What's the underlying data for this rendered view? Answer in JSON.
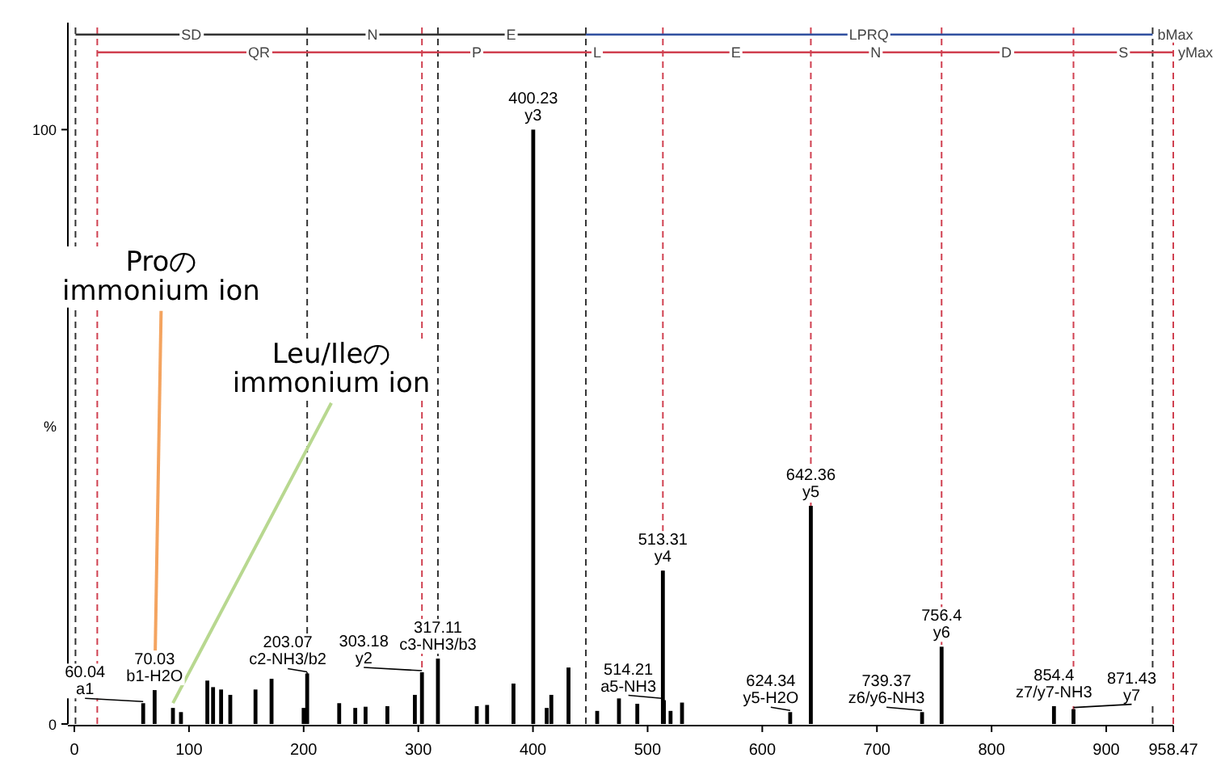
{
  "chart_data": {
    "type": "bar",
    "ylabel": "%",
    "xlim": [
      0,
      958.47
    ],
    "ylim": [
      0,
      118
    ],
    "xticks": [
      0,
      100,
      200,
      300,
      400,
      500,
      600,
      700,
      800,
      900,
      958.47
    ],
    "yticks": [
      0,
      100
    ],
    "x": [
      60.04,
      70.03,
      86,
      93,
      116,
      121,
      128,
      136,
      158,
      172,
      200,
      203.07,
      231,
      245,
      254,
      273,
      297,
      303.18,
      317.11,
      351,
      360,
      383,
      400.23,
      412,
      416,
      431,
      456,
      475,
      491,
      513.31,
      514.21,
      520,
      530,
      624.34,
      642.36,
      739.37,
      756.4,
      854.4,
      871.43
    ],
    "series": [
      {
        "color": "#000000",
        "values": [
          3.5,
          5.7,
          2.7,
          2.0,
          7.3,
          6.2,
          5.8,
          4.9,
          5.8,
          7.6,
          2.7,
          8.5,
          3.5,
          2.7,
          2.9,
          3.0,
          4.9,
          8.7,
          11,
          3,
          3.2,
          6.8,
          100,
          2.7,
          4.9,
          9.5,
          2.2,
          4.3,
          3.4,
          25.8,
          4,
          2.2,
          3.6,
          2,
          36.7,
          2,
          13,
          3,
          2.5
        ]
      },
      {
        "type": "line",
        "color": "#333333",
        "x": [
          1,
          203.07,
          317.11,
          446.15
        ],
        "values": [
          116,
          116,
          116,
          116
        ]
      },
      {
        "type": "line",
        "color": "#3050a0",
        "x": [
          446.15,
          940.46
        ],
        "values": [
          116,
          116
        ]
      },
      {
        "type": "line",
        "color": "#d04050",
        "x": [
          20,
          303.18,
          400.23,
          513.31,
          642.36,
          756.4,
          871.43,
          958.47
        ],
        "values": [
          113,
          113,
          113,
          113,
          113,
          113,
          113,
          113
        ]
      }
    ],
    "ref_lines": [
      {
        "axis": "x",
        "value": 1,
        "color": "#333333",
        "line_style": "dashed"
      },
      {
        "axis": "x",
        "value": 203.07,
        "color": "#333333",
        "line_style": "dashed"
      },
      {
        "axis": "x",
        "value": 317.11,
        "color": "#333333",
        "line_style": "dashed"
      },
      {
        "axis": "x",
        "value": 446.15,
        "color": "#333333",
        "line_style": "dashed"
      },
      {
        "axis": "x",
        "value": 940.46,
        "color": "#333333",
        "line_style": "dashed"
      },
      {
        "axis": "x",
        "value": 20,
        "color": "#d04050",
        "line_style": "dashed"
      },
      {
        "axis": "x",
        "value": 303.18,
        "color": "#d04050",
        "line_style": "dashed"
      },
      {
        "axis": "x",
        "value": 513.31,
        "color": "#d04050",
        "line_style": "dashed"
      },
      {
        "axis": "x",
        "value": 642.36,
        "color": "#d04050",
        "line_style": "dashed"
      },
      {
        "axis": "x",
        "value": 756.4,
        "color": "#d04050",
        "line_style": "dashed"
      },
      {
        "axis": "x",
        "value": 871.43,
        "color": "#d04050",
        "line_style": "dashed"
      },
      {
        "axis": "x",
        "value": 958.47,
        "color": "#d04050",
        "line_style": "dashed"
      }
    ],
    "annotations": [
      {
        "text": "SD",
        "x": 102,
        "y": 116
      },
      {
        "text": "N",
        "x": 260,
        "y": 116
      },
      {
        "text": "E",
        "x": 381,
        "y": 116
      },
      {
        "text": "LPRQ",
        "x": 693,
        "y": 116
      },
      {
        "text": "bMax",
        "x": 940.46,
        "y": 116
      },
      {
        "text": "QR",
        "x": 161,
        "y": 113
      },
      {
        "text": "P",
        "x": 351,
        "y": 113
      },
      {
        "text": "L",
        "x": 456,
        "y": 113
      },
      {
        "text": "E",
        "x": 577,
        "y": 113
      },
      {
        "text": "N",
        "x": 699,
        "y": 113
      },
      {
        "text": "D",
        "x": 813,
        "y": 113
      },
      {
        "text": "S",
        "x": 915,
        "y": 113
      },
      {
        "text": "yMax",
        "x": 958.47,
        "y": 113
      },
      {
        "text": "Proの\nimmonium ion",
        "x": 70.03,
        "y": 5.7
      },
      {
        "text": "Leu/Ileの\nimmonium ion",
        "x": 86,
        "y": 2.7
      },
      {
        "text": "60.04\na1",
        "x": 60.04,
        "y": 3.5
      },
      {
        "text": "70.03\nb1-H2O",
        "x": 70.03,
        "y": 5.7
      },
      {
        "text": "203.07\nc2-NH3/b2",
        "x": 203.07,
        "y": 8.5
      },
      {
        "text": "303.18\ny2",
        "x": 303.18,
        "y": 8.7
      },
      {
        "text": "317.11\nc3-NH3/b3",
        "x": 317.11,
        "y": 11
      },
      {
        "text": "400.23\ny3",
        "x": 400.23,
        "y": 100
      },
      {
        "text": "513.31\ny4",
        "x": 513.31,
        "y": 25.8
      },
      {
        "text": "514.21\na5-NH3",
        "x": 514.21,
        "y": 4
      },
      {
        "text": "624.34\ny5-H2O",
        "x": 624.34,
        "y": 2
      },
      {
        "text": "642.36\ny5",
        "x": 642.36,
        "y": 36.7
      },
      {
        "text": "739.37\nz6/y6-NH3",
        "x": 739.37,
        "y": 2
      },
      {
        "text": "756.4\ny6",
        "x": 756.4,
        "y": 13
      },
      {
        "text": "854.4\nz7/y7-NH3",
        "x": 854.4,
        "y": 3
      },
      {
        "text": "871.43\ny7",
        "x": 871.43,
        "y": 2.5
      }
    ]
  }
}
